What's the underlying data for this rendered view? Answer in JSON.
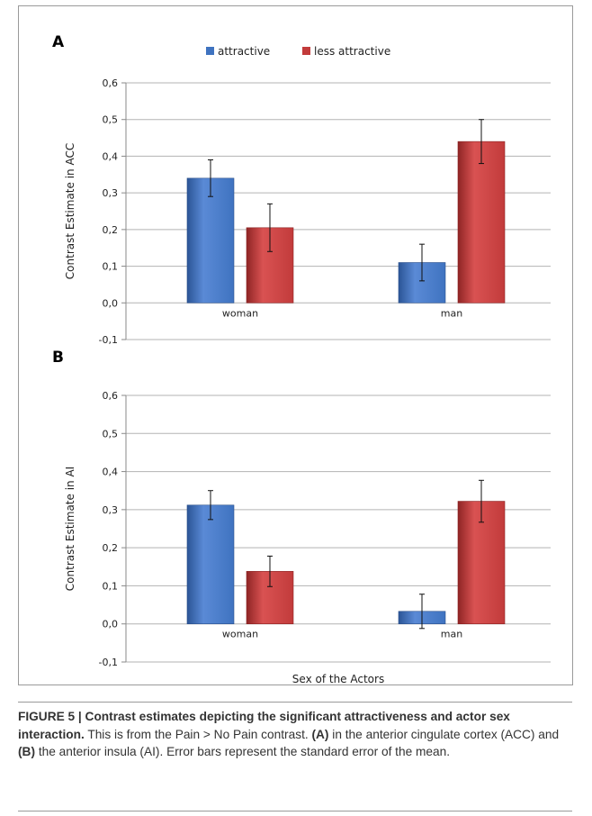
{
  "chart_data": [
    {
      "type": "bar",
      "panel_label": "A",
      "categories": [
        "woman",
        "man"
      ],
      "series": [
        {
          "name": "attractive",
          "values": [
            0.34,
            0.11
          ],
          "errors": [
            0.05,
            0.05
          ]
        },
        {
          "name": "less attractive",
          "values": [
            0.205,
            0.44
          ],
          "errors": [
            0.065,
            0.06
          ]
        }
      ],
      "ylabel": "Contrast Estimate in ACC",
      "xlabel": "",
      "ylim": [
        -0.1,
        0.6
      ],
      "yticks": [
        "-0,1",
        "0,0",
        "0,1",
        "0,2",
        "0,3",
        "0,4",
        "0,5",
        "0,6"
      ],
      "grid": true,
      "legend": "top-center"
    },
    {
      "type": "bar",
      "panel_label": "B",
      "categories": [
        "woman",
        "man"
      ],
      "series": [
        {
          "name": "attractive",
          "values": [
            0.312,
            0.033
          ],
          "errors": [
            0.038,
            0.045
          ]
        },
        {
          "name": "less attractive",
          "values": [
            0.138,
            0.322
          ],
          "errors": [
            0.04,
            0.055
          ]
        }
      ],
      "ylabel": "Contrast Estimate in AI",
      "xlabel": "Sex of the Actors",
      "ylim": [
        -0.1,
        0.6
      ],
      "yticks": [
        "-0,1",
        "0,0",
        "0,1",
        "0,2",
        "0,3",
        "0,4",
        "0,5",
        "0,6"
      ],
      "grid": true,
      "legend": "none"
    }
  ],
  "colors": {
    "attractive": "#3f73c0",
    "attractive_dark": "#2b5596",
    "less_attractive": "#c23b3b",
    "less_attractive_dark": "#8f2525",
    "grid": "#b3b3b3",
    "axis": "#8a8a8a"
  },
  "caption": {
    "heading": "FIGURE 5 | Contrast estimates depicting the significant attractiveness and actor sex interaction.",
    "text_1": " This is from the Pain > No Pain contrast. ",
    "label_a": "(A)",
    "text_2": " in the anterior cingulate cortex (ACC) and ",
    "label_b": "(B)",
    "text_3": " the anterior insula (AI). Error bars represent the standard error of the mean."
  }
}
